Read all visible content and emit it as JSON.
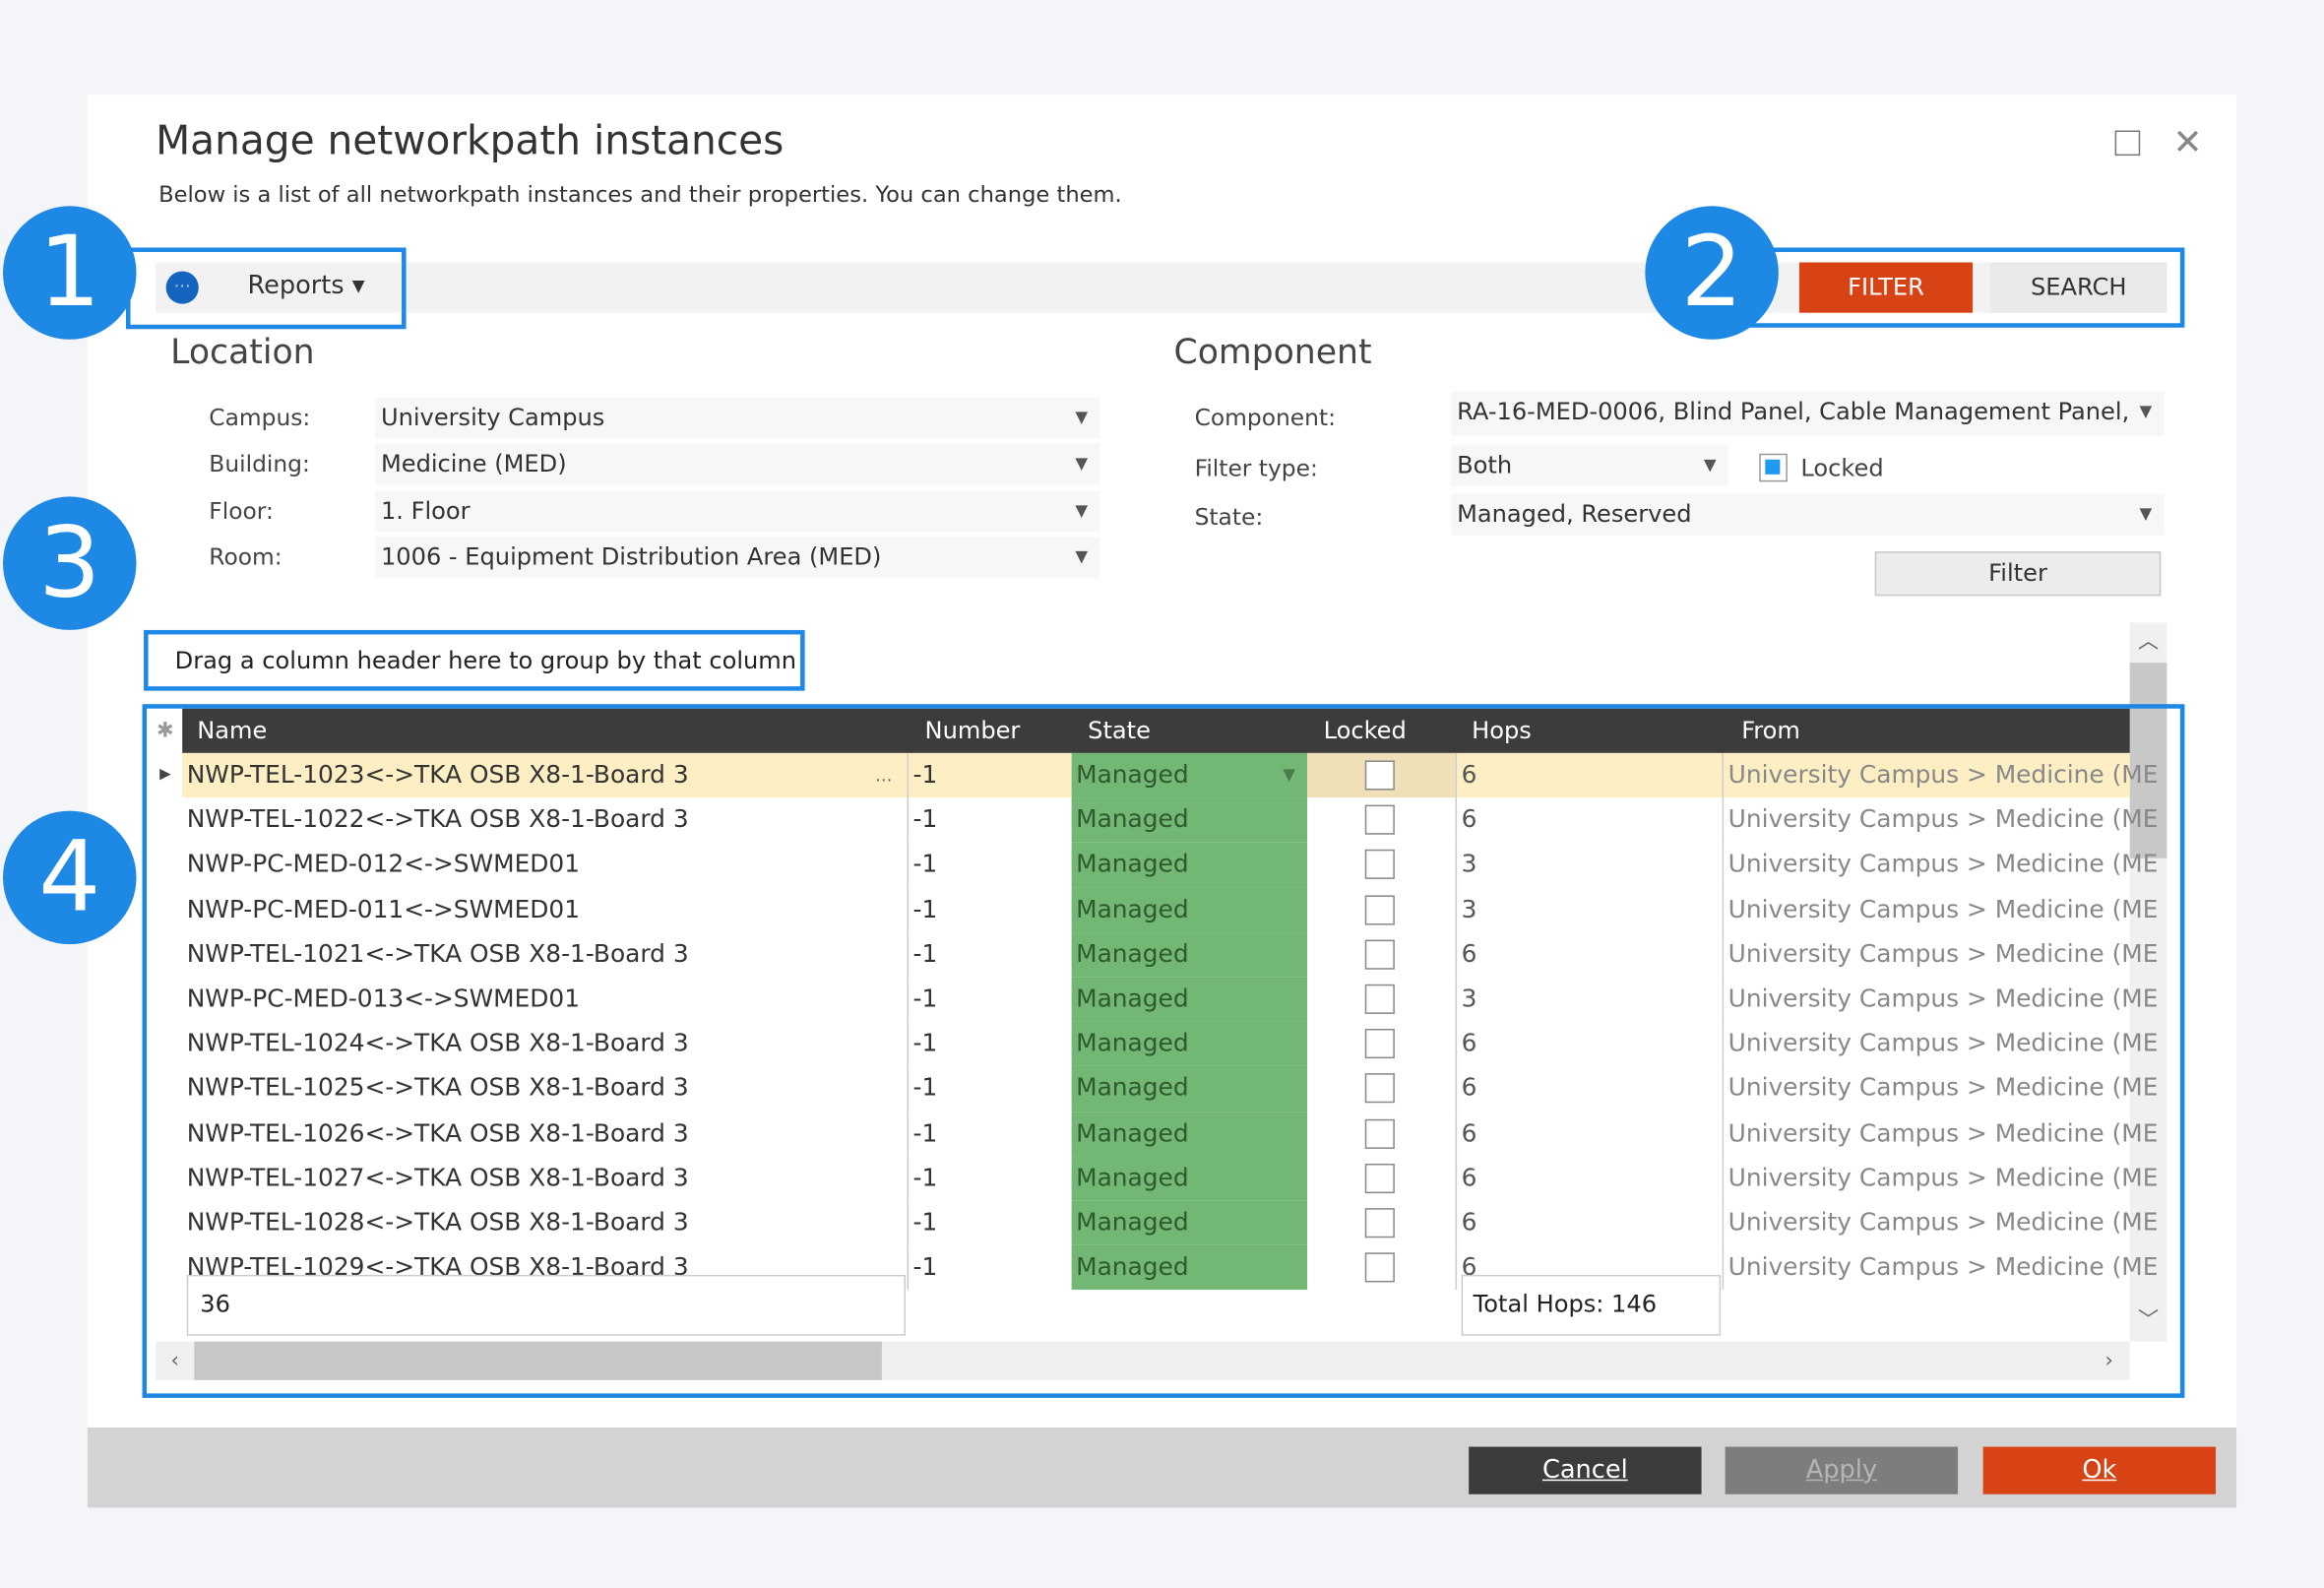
{
  "dialog": {
    "title": "Manage networkpath instances",
    "subtitle": "Below is a list of all networkpath instances and their properties. You can change them."
  },
  "toolbar": {
    "more_icon": "ellipsis-circle-icon",
    "more_glyph": "···",
    "reports_label": "Reports ▾",
    "filter_tab": "FILTER",
    "search_tab": "SEARCH"
  },
  "badges": [
    "1",
    "2",
    "3",
    "4"
  ],
  "location": {
    "heading": "Location",
    "campus_label": "Campus:",
    "campus_value": "University Campus",
    "building_label": "Building:",
    "building_value": "Medicine (MED)",
    "floor_label": "Floor:",
    "floor_value": "1. Floor",
    "room_label": "Room:",
    "room_value": "1006 - Equipment Distribution Area (MED)"
  },
  "component": {
    "heading": "Component",
    "component_label": "Component:",
    "component_value": "RA-16-MED-0006, Blind Panel, Cable Management Panel,",
    "filter_type_label": "Filter type:",
    "filter_type_value": "Both",
    "locked_label": "Locked",
    "locked_checked": true,
    "state_label": "State:",
    "state_value": "Managed, Reserved",
    "filter_button": "Filter"
  },
  "grid": {
    "group_hint": "Drag a column header here to group by that column",
    "columns": [
      "Name",
      "Number",
      "State",
      "Locked",
      "Hops",
      "From"
    ],
    "rows": [
      {
        "name": "NWP-TEL-1023<->TKA OSB X8-1-Board 3",
        "number": "-1",
        "state": "Managed",
        "locked": false,
        "hops": "6",
        "from": "University Campus > Medicine (ME"
      },
      {
        "name": "NWP-TEL-1022<->TKA OSB X8-1-Board 3",
        "number": "-1",
        "state": "Managed",
        "locked": false,
        "hops": "6",
        "from": "University Campus > Medicine (ME"
      },
      {
        "name": "NWP-PC-MED-012<->SWMED01",
        "number": "-1",
        "state": "Managed",
        "locked": false,
        "hops": "3",
        "from": "University Campus > Medicine (ME"
      },
      {
        "name": "NWP-PC-MED-011<->SWMED01",
        "number": "-1",
        "state": "Managed",
        "locked": false,
        "hops": "3",
        "from": "University Campus > Medicine (ME"
      },
      {
        "name": "NWP-TEL-1021<->TKA OSB X8-1-Board 3",
        "number": "-1",
        "state": "Managed",
        "locked": false,
        "hops": "6",
        "from": "University Campus > Medicine (ME"
      },
      {
        "name": "NWP-PC-MED-013<->SWMED01",
        "number": "-1",
        "state": "Managed",
        "locked": false,
        "hops": "3",
        "from": "University Campus > Medicine (ME"
      },
      {
        "name": "NWP-TEL-1024<->TKA OSB X8-1-Board 3",
        "number": "-1",
        "state": "Managed",
        "locked": false,
        "hops": "6",
        "from": "University Campus > Medicine (ME"
      },
      {
        "name": "NWP-TEL-1025<->TKA OSB X8-1-Board 3",
        "number": "-1",
        "state": "Managed",
        "locked": false,
        "hops": "6",
        "from": "University Campus > Medicine (ME"
      },
      {
        "name": "NWP-TEL-1026<->TKA OSB X8-1-Board 3",
        "number": "-1",
        "state": "Managed",
        "locked": false,
        "hops": "6",
        "from": "University Campus > Medicine (ME"
      },
      {
        "name": "NWP-TEL-1027<->TKA OSB X8-1-Board 3",
        "number": "-1",
        "state": "Managed",
        "locked": false,
        "hops": "6",
        "from": "University Campus > Medicine (ME"
      },
      {
        "name": "NWP-TEL-1028<->TKA OSB X8-1-Board 3",
        "number": "-1",
        "state": "Managed",
        "locked": false,
        "hops": "6",
        "from": "University Campus > Medicine (ME"
      },
      {
        "name": "NWP-TEL-1029<->TKA OSB X8-1-Board 3",
        "number": "-1",
        "state": "Managed",
        "locked": false,
        "hops": "6",
        "from": "University Campus > Medicine (ME"
      }
    ],
    "selected_row": 0,
    "count_summary": "36",
    "hops_summary": "Total Hops: 146"
  },
  "footer": {
    "cancel": "Cancel",
    "apply": "Apply",
    "ok": "Ok"
  },
  "colors": {
    "accent": "#1e88e5",
    "primary_button": "#d84315",
    "managed_state": "#72b874",
    "selected_row": "#fdefc3",
    "header": "#3c3c3c"
  }
}
